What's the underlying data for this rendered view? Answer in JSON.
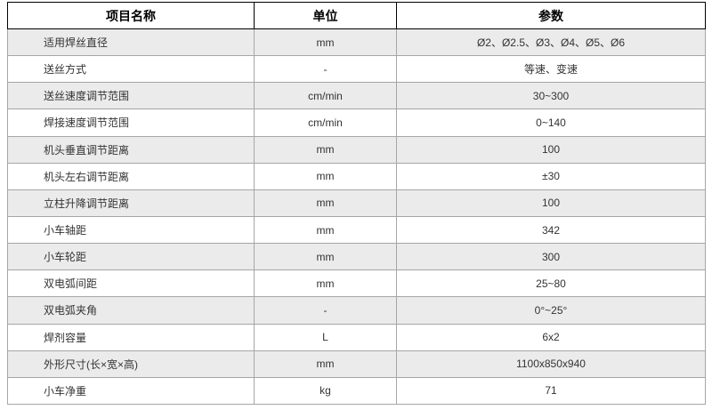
{
  "table": {
    "columns": [
      {
        "label": "项目名称"
      },
      {
        "label": "单位"
      },
      {
        "label": "参数"
      }
    ],
    "rows": [
      {
        "name": "适用焊丝直径",
        "unit": "mm",
        "value": "Ø2、Ø2.5、Ø3、Ø4、Ø5、Ø6"
      },
      {
        "name": "送丝方式",
        "unit": "-",
        "value": "等速、变速"
      },
      {
        "name": "送丝速度调节范围",
        "unit": "cm/min",
        "value": "30~300"
      },
      {
        "name": "焊接速度调节范围",
        "unit": "cm/min",
        "value": "0~140"
      },
      {
        "name": "机头垂直调节距离",
        "unit": "mm",
        "value": "100"
      },
      {
        "name": "机头左右调节距离",
        "unit": "mm",
        "value": "±30"
      },
      {
        "name": "立柱升降调节距离",
        "unit": "mm",
        "value": "100"
      },
      {
        "name": "小车轴距",
        "unit": "mm",
        "value": "342"
      },
      {
        "name": "小车轮距",
        "unit": "mm",
        "value": "300"
      },
      {
        "name": "双电弧间距",
        "unit": "mm",
        "value": "25~80"
      },
      {
        "name": "双电弧夹角",
        "unit": "-",
        "value": "0°~25°"
      },
      {
        "name": "焊剂容量",
        "unit": "L",
        "value": "6x2"
      },
      {
        "name": "外形尺寸(长×宽×高)",
        "unit": "mm",
        "value": "1100x850x940"
      },
      {
        "name": "小车净重",
        "unit": "kg",
        "value": "71"
      }
    ],
    "colors": {
      "stripe_bg": "#ebebeb",
      "grid_border": "#a6a6a6",
      "header_border": "#000000",
      "header_text": "#000000",
      "body_text": "#333333"
    }
  }
}
